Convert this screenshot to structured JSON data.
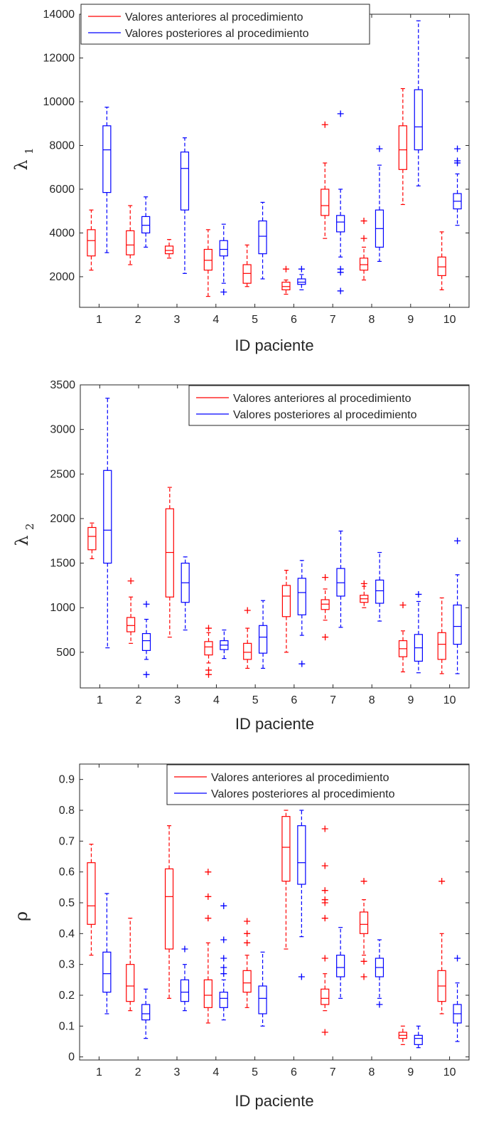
{
  "colors": {
    "before": "#ff0000",
    "after": "#0000ff",
    "axis": "#262626"
  },
  "chart_data": [
    {
      "type": "box",
      "xlabel": "ID paciente",
      "ylabel_symbol": "λ",
      "ylabel_sub": "1",
      "ylim": [
        600,
        14000
      ],
      "yticks": [
        2000,
        4000,
        6000,
        8000,
        10000,
        12000,
        14000
      ],
      "categories": [
        "1",
        "2",
        "3",
        "4",
        "5",
        "6",
        "7",
        "8",
        "9",
        "10"
      ],
      "legend": {
        "position": "top-left"
      },
      "series": [
        {
          "name": "Valores anteriores al procedimiento",
          "boxes": [
            {
              "q1": 2950,
              "median": 3650,
              "q3": 4150,
              "wlo": 2300,
              "whi": 5050,
              "outliers": []
            },
            {
              "q1": 3000,
              "median": 3450,
              "q3": 4100,
              "wlo": 2550,
              "whi": 5250,
              "outliers": []
            },
            {
              "q1": 3050,
              "median": 3200,
              "q3": 3400,
              "wlo": 2850,
              "whi": 3700,
              "outliers": []
            },
            {
              "q1": 2300,
              "median": 2750,
              "q3": 3250,
              "wlo": 1100,
              "whi": 4150,
              "outliers": []
            },
            {
              "q1": 1700,
              "median": 2150,
              "q3": 2550,
              "wlo": 1550,
              "whi": 3450,
              "outliers": []
            },
            {
              "q1": 1400,
              "median": 1550,
              "q3": 1750,
              "wlo": 1200,
              "whi": 1850,
              "outliers": [
                2350
              ]
            },
            {
              "q1": 4800,
              "median": 5250,
              "q3": 6000,
              "wlo": 3750,
              "whi": 7200,
              "outliers": [
                8950
              ]
            },
            {
              "q1": 2300,
              "median": 2550,
              "q3": 2850,
              "wlo": 1850,
              "whi": 3350,
              "outliers": [
                3750,
                4550
              ]
            },
            {
              "q1": 6900,
              "median": 7800,
              "q3": 8900,
              "wlo": 5300,
              "whi": 10600,
              "outliers": []
            },
            {
              "q1": 2050,
              "median": 2450,
              "q3": 2900,
              "wlo": 1400,
              "whi": 4050,
              "outliers": []
            }
          ]
        },
        {
          "name": "Valores posteriores al procedimiento",
          "boxes": [
            {
              "q1": 5850,
              "median": 7800,
              "q3": 8900,
              "wlo": 3100,
              "whi": 9750,
              "outliers": []
            },
            {
              "q1": 4000,
              "median": 4350,
              "q3": 4750,
              "wlo": 3350,
              "whi": 5650,
              "outliers": []
            },
            {
              "q1": 5050,
              "median": 6950,
              "q3": 7700,
              "wlo": 2150,
              "whi": 8350,
              "outliers": []
            },
            {
              "q1": 2950,
              "median": 3250,
              "q3": 3650,
              "wlo": 1700,
              "whi": 4400,
              "outliers": [
                1300
              ]
            },
            {
              "q1": 3050,
              "median": 3850,
              "q3": 4550,
              "wlo": 1900,
              "whi": 5400,
              "outliers": []
            },
            {
              "q1": 1650,
              "median": 1750,
              "q3": 1900,
              "wlo": 1400,
              "whi": 2100,
              "outliers": [
                2350
              ]
            },
            {
              "q1": 4050,
              "median": 4500,
              "q3": 4800,
              "wlo": 2900,
              "whi": 6000,
              "outliers": [
                2200,
                2350,
                1350,
                9450
              ]
            },
            {
              "q1": 3350,
              "median": 4200,
              "q3": 5050,
              "wlo": 2700,
              "whi": 7100,
              "outliers": [
                7850
              ]
            },
            {
              "q1": 7800,
              "median": 8850,
              "q3": 10550,
              "wlo": 6150,
              "whi": 13700,
              "outliers": []
            },
            {
              "q1": 5100,
              "median": 5450,
              "q3": 5800,
              "wlo": 4350,
              "whi": 6700,
              "outliers": [
                7300,
                7200,
                7850
              ]
            }
          ]
        }
      ]
    },
    {
      "type": "box",
      "xlabel": "ID paciente",
      "ylabel_symbol": "λ",
      "ylabel_sub": "2",
      "ylim": [
        100,
        3500
      ],
      "yticks": [
        500,
        1000,
        1500,
        2000,
        2500,
        3000,
        3500
      ],
      "categories": [
        "1",
        "2",
        "3",
        "4",
        "5",
        "6",
        "7",
        "8",
        "9",
        "10"
      ],
      "legend": {
        "position": "top-right"
      },
      "series": [
        {
          "name": "Valores anteriores al procedimiento",
          "boxes": [
            {
              "q1": 1650,
              "median": 1800,
              "q3": 1900,
              "wlo": 1550,
              "whi": 1950,
              "outliers": []
            },
            {
              "q1": 730,
              "median": 800,
              "q3": 890,
              "wlo": 600,
              "whi": 1120,
              "outliers": [
                1300
              ]
            },
            {
              "q1": 1120,
              "median": 1620,
              "q3": 2110,
              "wlo": 670,
              "whi": 2350,
              "outliers": []
            },
            {
              "q1": 470,
              "median": 560,
              "q3": 620,
              "wlo": 380,
              "whi": 720,
              "outliers": [
                300,
                250,
                770
              ]
            },
            {
              "q1": 420,
              "median": 500,
              "q3": 600,
              "wlo": 320,
              "whi": 770,
              "outliers": [
                970
              ]
            },
            {
              "q1": 900,
              "median": 1130,
              "q3": 1250,
              "wlo": 500,
              "whi": 1420,
              "outliers": []
            },
            {
              "q1": 980,
              "median": 1040,
              "q3": 1090,
              "wlo": 860,
              "whi": 1210,
              "outliers": [
                670,
                1340
              ]
            },
            {
              "q1": 1060,
              "median": 1100,
              "q3": 1140,
              "wlo": 1000,
              "whi": 1240,
              "outliers": [
                1270
              ]
            },
            {
              "q1": 450,
              "median": 540,
              "q3": 630,
              "wlo": 280,
              "whi": 740,
              "outliers": [
                1030
              ]
            },
            {
              "q1": 420,
              "median": 590,
              "q3": 720,
              "wlo": 260,
              "whi": 1110,
              "outliers": []
            }
          ]
        },
        {
          "name": "Valores posteriores al procedimiento",
          "boxes": [
            {
              "q1": 1500,
              "median": 1870,
              "q3": 2540,
              "wlo": 550,
              "whi": 3350,
              "outliers": []
            },
            {
              "q1": 520,
              "median": 630,
              "q3": 710,
              "wlo": 420,
              "whi": 870,
              "outliers": [
                1040,
                250
              ]
            },
            {
              "q1": 1060,
              "median": 1280,
              "q3": 1500,
              "wlo": 750,
              "whi": 1570,
              "outliers": []
            },
            {
              "q1": 530,
              "median": 580,
              "q3": 630,
              "wlo": 430,
              "whi": 750,
              "outliers": []
            },
            {
              "q1": 490,
              "median": 670,
              "q3": 800,
              "wlo": 320,
              "whi": 1080,
              "outliers": []
            },
            {
              "q1": 920,
              "median": 1170,
              "q3": 1330,
              "wlo": 690,
              "whi": 1530,
              "outliers": [
                370
              ]
            },
            {
              "q1": 1130,
              "median": 1280,
              "q3": 1440,
              "wlo": 780,
              "whi": 1860,
              "outliers": []
            },
            {
              "q1": 1050,
              "median": 1190,
              "q3": 1310,
              "wlo": 850,
              "whi": 1620,
              "outliers": []
            },
            {
              "q1": 400,
              "median": 550,
              "q3": 700,
              "wlo": 270,
              "whi": 1070,
              "outliers": [
                1150
              ]
            },
            {
              "q1": 590,
              "median": 790,
              "q3": 1030,
              "wlo": 260,
              "whi": 1370,
              "outliers": [
                1750
              ]
            }
          ]
        }
      ]
    },
    {
      "type": "box",
      "xlabel": "ID paciente",
      "ylabel_symbol": "ρ",
      "ylabel_sub": "",
      "ylim": [
        -0.01,
        0.95
      ],
      "yticks": [
        0,
        0.1,
        0.2,
        0.3,
        0.4,
        0.5,
        0.6,
        0.7,
        0.8,
        0.9
      ],
      "categories": [
        "1",
        "2",
        "3",
        "4",
        "5",
        "6",
        "7",
        "8",
        "9",
        "10"
      ],
      "legend": {
        "position": "top-right"
      },
      "series": [
        {
          "name": "Valores anteriores al procedimiento",
          "boxes": [
            {
              "q1": 0.43,
              "median": 0.49,
              "q3": 0.63,
              "wlo": 0.33,
              "whi": 0.69,
              "outliers": []
            },
            {
              "q1": 0.18,
              "median": 0.23,
              "q3": 0.3,
              "wlo": 0.15,
              "whi": 0.45,
              "outliers": []
            },
            {
              "q1": 0.35,
              "median": 0.52,
              "q3": 0.61,
              "wlo": 0.19,
              "whi": 0.75,
              "outliers": []
            },
            {
              "q1": 0.16,
              "median": 0.2,
              "q3": 0.25,
              "wlo": 0.11,
              "whi": 0.37,
              "outliers": [
                0.45,
                0.52,
                0.6
              ]
            },
            {
              "q1": 0.21,
              "median": 0.24,
              "q3": 0.28,
              "wlo": 0.16,
              "whi": 0.33,
              "outliers": [
                0.37,
                0.4,
                0.44
              ]
            },
            {
              "q1": 0.57,
              "median": 0.68,
              "q3": 0.78,
              "wlo": 0.35,
              "whi": 0.8,
              "outliers": []
            },
            {
              "q1": 0.17,
              "median": 0.19,
              "q3": 0.22,
              "wlo": 0.15,
              "whi": 0.27,
              "outliers": [
                0.08,
                0.32,
                0.45,
                0.5,
                0.51,
                0.54,
                0.62,
                0.74
              ]
            },
            {
              "q1": 0.4,
              "median": 0.43,
              "q3": 0.47,
              "wlo": 0.33,
              "whi": 0.51,
              "outliers": [
                0.26,
                0.31,
                0.57
              ]
            },
            {
              "q1": 0.06,
              "median": 0.07,
              "q3": 0.08,
              "wlo": 0.04,
              "whi": 0.1,
              "outliers": []
            },
            {
              "q1": 0.18,
              "median": 0.23,
              "q3": 0.28,
              "wlo": 0.14,
              "whi": 0.4,
              "outliers": [
                0.57
              ]
            }
          ]
        },
        {
          "name": "Valores posteriores al procedimiento",
          "boxes": [
            {
              "q1": 0.21,
              "median": 0.27,
              "q3": 0.34,
              "wlo": 0.14,
              "whi": 0.53,
              "outliers": []
            },
            {
              "q1": 0.12,
              "median": 0.14,
              "q3": 0.17,
              "wlo": 0.06,
              "whi": 0.22,
              "outliers": []
            },
            {
              "q1": 0.18,
              "median": 0.21,
              "q3": 0.25,
              "wlo": 0.15,
              "whi": 0.3,
              "outliers": [
                0.35
              ]
            },
            {
              "q1": 0.16,
              "median": 0.19,
              "q3": 0.21,
              "wlo": 0.12,
              "whi": 0.25,
              "outliers": [
                0.27,
                0.29,
                0.32,
                0.38,
                0.49
              ]
            },
            {
              "q1": 0.14,
              "median": 0.19,
              "q3": 0.23,
              "wlo": 0.1,
              "whi": 0.34,
              "outliers": []
            },
            {
              "q1": 0.56,
              "median": 0.63,
              "q3": 0.75,
              "wlo": 0.39,
              "whi": 0.8,
              "outliers": [
                0.26
              ]
            },
            {
              "q1": 0.26,
              "median": 0.29,
              "q3": 0.33,
              "wlo": 0.19,
              "whi": 0.42,
              "outliers": []
            },
            {
              "q1": 0.26,
              "median": 0.29,
              "q3": 0.32,
              "wlo": 0.19,
              "whi": 0.38,
              "outliers": [
                0.17
              ]
            },
            {
              "q1": 0.04,
              "median": 0.06,
              "q3": 0.07,
              "wlo": 0.03,
              "whi": 0.1,
              "outliers": []
            },
            {
              "q1": 0.11,
              "median": 0.14,
              "q3": 0.17,
              "wlo": 0.05,
              "whi": 0.24,
              "outliers": [
                0.32
              ]
            }
          ]
        }
      ]
    }
  ]
}
